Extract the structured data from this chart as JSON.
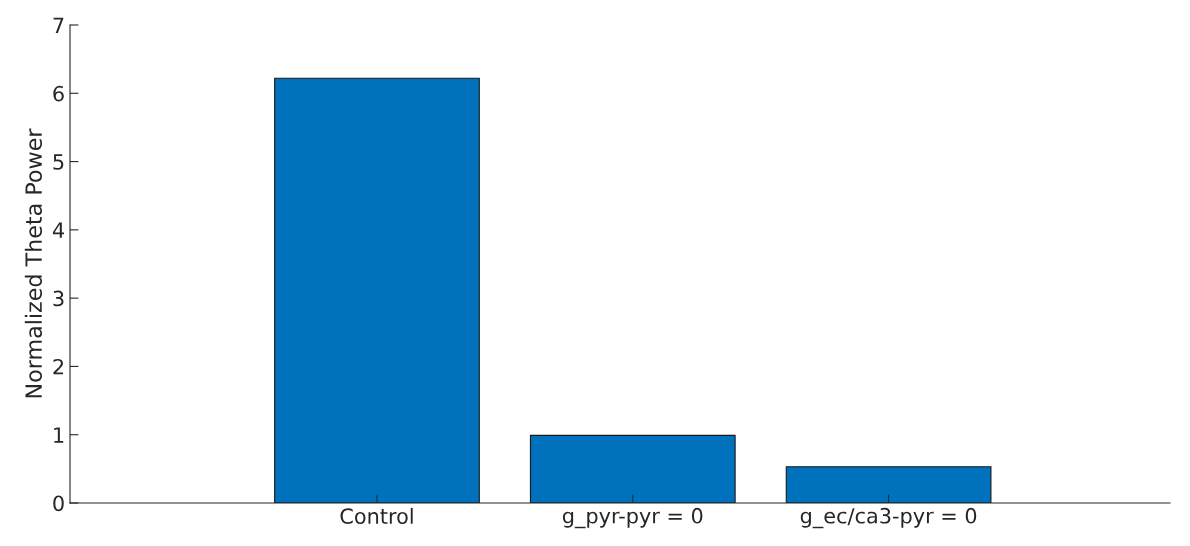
{
  "chart_data": {
    "type": "bar",
    "ylabel": "Normalized Theta Power",
    "categories": [
      "Control",
      "g_pyr-pyr = 0",
      "g_ec/ca3-pyr = 0"
    ],
    "values": [
      6.22,
      0.99,
      0.53
    ],
    "color": "#0072bd",
    "ylim": [
      0,
      7
    ],
    "yticks": [
      0,
      1,
      2,
      3,
      4,
      5,
      6,
      7
    ],
    "grid": false,
    "legend": false
  }
}
